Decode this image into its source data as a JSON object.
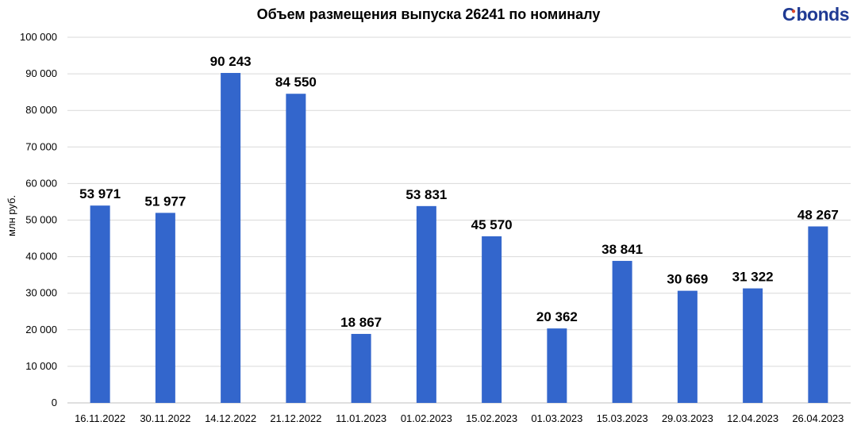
{
  "brand": {
    "logo_text_start": "C",
    "logo_text_end": "bonds",
    "logo_dot_color": "#e04a2b",
    "logo_color": "#1f3a93"
  },
  "chart_data": {
    "type": "bar",
    "title": "Объем размещения выпуска 26241 по номиналу",
    "xlabel": "",
    "ylabel": "млн руб.",
    "ylim": [
      0,
      100000
    ],
    "yticks": [
      0,
      10000,
      20000,
      30000,
      40000,
      50000,
      60000,
      70000,
      80000,
      90000,
      100000
    ],
    "ytick_labels": [
      "0",
      "10 000",
      "20 000",
      "30 000",
      "40 000",
      "50 000",
      "60 000",
      "70 000",
      "80 000",
      "90 000",
      "100 000"
    ],
    "grid": true,
    "bar_color": "#3366cc",
    "categories": [
      "16.11.2022",
      "30.11.2022",
      "14.12.2022",
      "21.12.2022",
      "11.01.2023",
      "01.02.2023",
      "15.02.2023",
      "01.03.2023",
      "15.03.2023",
      "29.03.2023",
      "12.04.2023",
      "26.04.2023"
    ],
    "values": [
      53971,
      51977,
      90243,
      84550,
      18867,
      53831,
      45570,
      20362,
      38841,
      30669,
      31322,
      48267
    ],
    "value_labels": [
      "53 971",
      "51 977",
      "90 243",
      "84 550",
      "18 867",
      "53 831",
      "45 570",
      "20 362",
      "38 841",
      "30 669",
      "31 322",
      "48 267"
    ]
  }
}
